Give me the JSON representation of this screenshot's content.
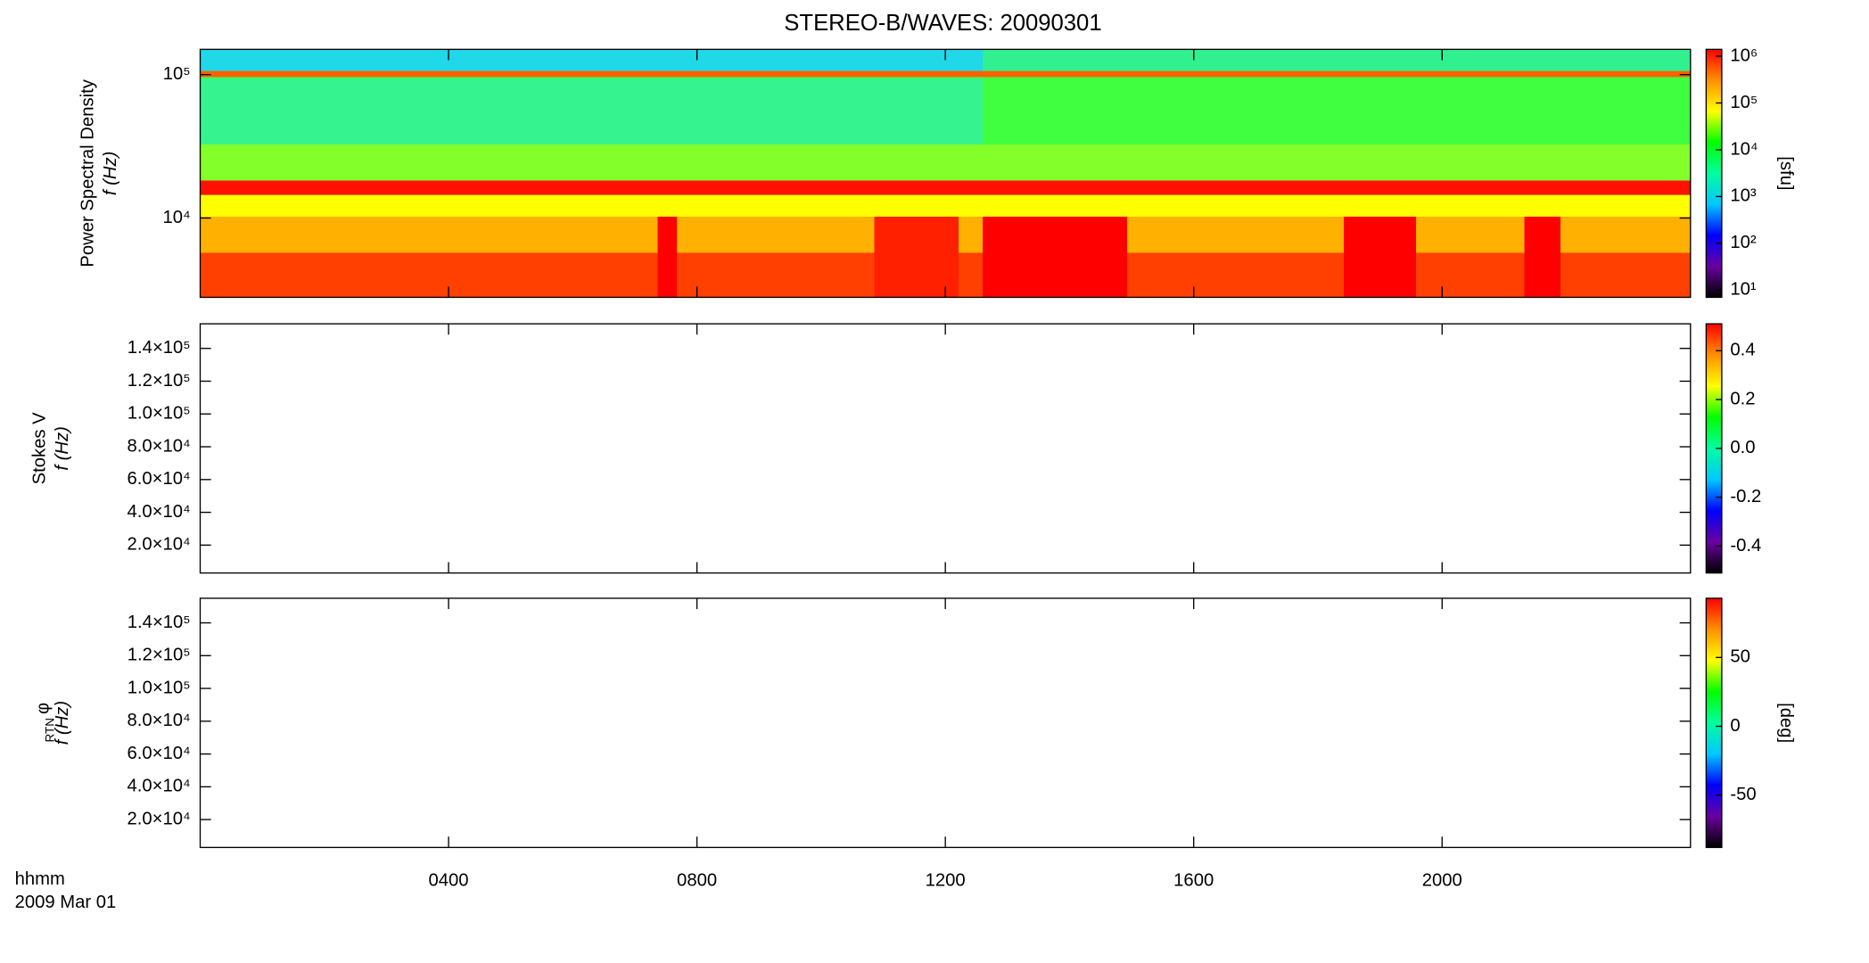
{
  "title": "STEREO-B/WAVES: 20090301",
  "time_label": "hhmm",
  "date_label": "2009 Mar 01",
  "colormap": [
    "#000000",
    "#6a00a0",
    "#0000ff",
    "#00c8ff",
    "#00ffa0",
    "#00ff00",
    "#ffff00",
    "#ff9000",
    "#ff0000"
  ],
  "chart_data": [
    {
      "type": "heatmap",
      "ylabel": "Power Spectral Density",
      "ylabel_unit": "f (Hz)",
      "yscale": "log",
      "xlim": [
        0,
        24
      ],
      "ylim": [
        2800,
        150000
      ],
      "yticks": [
        {
          "value": 10000,
          "label": "10⁴"
        },
        {
          "value": 100000,
          "label": "10⁵"
        }
      ],
      "colorbar": {
        "scale": "log",
        "lim": [
          7,
          1400000
        ],
        "label": "[sfu]",
        "ticks": [
          {
            "value": 10,
            "label": "10¹"
          },
          {
            "value": 100,
            "label": "10²"
          },
          {
            "value": 1000,
            "label": "10³"
          },
          {
            "value": 10000,
            "label": "10⁴"
          },
          {
            "value": 100000,
            "label": "10⁵"
          },
          {
            "value": 1000000,
            "label": "10⁶"
          }
        ]
      }
    },
    {
      "type": "heatmap",
      "ylabel": "Stokes V",
      "ylabel_unit": "f (Hz)",
      "yscale": "linear",
      "xlim": [
        0,
        24
      ],
      "ylim": [
        3000,
        155000
      ],
      "yticks": [
        {
          "value": 20000,
          "label": "2.0×10⁴"
        },
        {
          "value": 40000,
          "label": "4.0×10⁴"
        },
        {
          "value": 60000,
          "label": "6.0×10⁴"
        },
        {
          "value": 80000,
          "label": "8.0×10⁴"
        },
        {
          "value": 100000,
          "label": "1.0×10⁵"
        },
        {
          "value": 120000,
          "label": "1.2×10⁵"
        },
        {
          "value": 140000,
          "label": "1.4×10⁵"
        }
      ],
      "colorbar": {
        "scale": "linear",
        "lim": [
          -0.51,
          0.51
        ],
        "ticks": [
          -0.4,
          -0.2,
          {
            "value": 0,
            "label": "0.0"
          },
          0.2,
          0.4
        ]
      }
    },
    {
      "type": "heatmap",
      "ylabel_symbol": "φ",
      "ylabel_sub": "RTN",
      "ylabel_unit": "f (Hz)",
      "yscale": "linear",
      "xlim": [
        0,
        24
      ],
      "ylim": [
        3000,
        155000
      ],
      "yticks": [
        {
          "value": 20000,
          "label": "2.0×10⁴"
        },
        {
          "value": 40000,
          "label": "4.0×10⁴"
        },
        {
          "value": 60000,
          "label": "6.0×10⁴"
        },
        {
          "value": 80000,
          "label": "8.0×10⁴"
        },
        {
          "value": 100000,
          "label": "1.0×10⁵"
        },
        {
          "value": 120000,
          "label": "1.2×10⁵"
        },
        {
          "value": 140000,
          "label": "1.4×10⁵"
        }
      ],
      "xticks": [
        {
          "value": 4,
          "label": "0400"
        },
        {
          "value": 8,
          "label": "0800"
        },
        {
          "value": 12,
          "label": "1200"
        },
        {
          "value": 16,
          "label": "1600"
        },
        {
          "value": 20,
          "label": "2000"
        }
      ],
      "colorbar": {
        "scale": "linear",
        "lim": [
          -88,
          93
        ],
        "label": "[deg]",
        "ticks": [
          -50,
          0,
          50
        ]
      }
    }
  ]
}
